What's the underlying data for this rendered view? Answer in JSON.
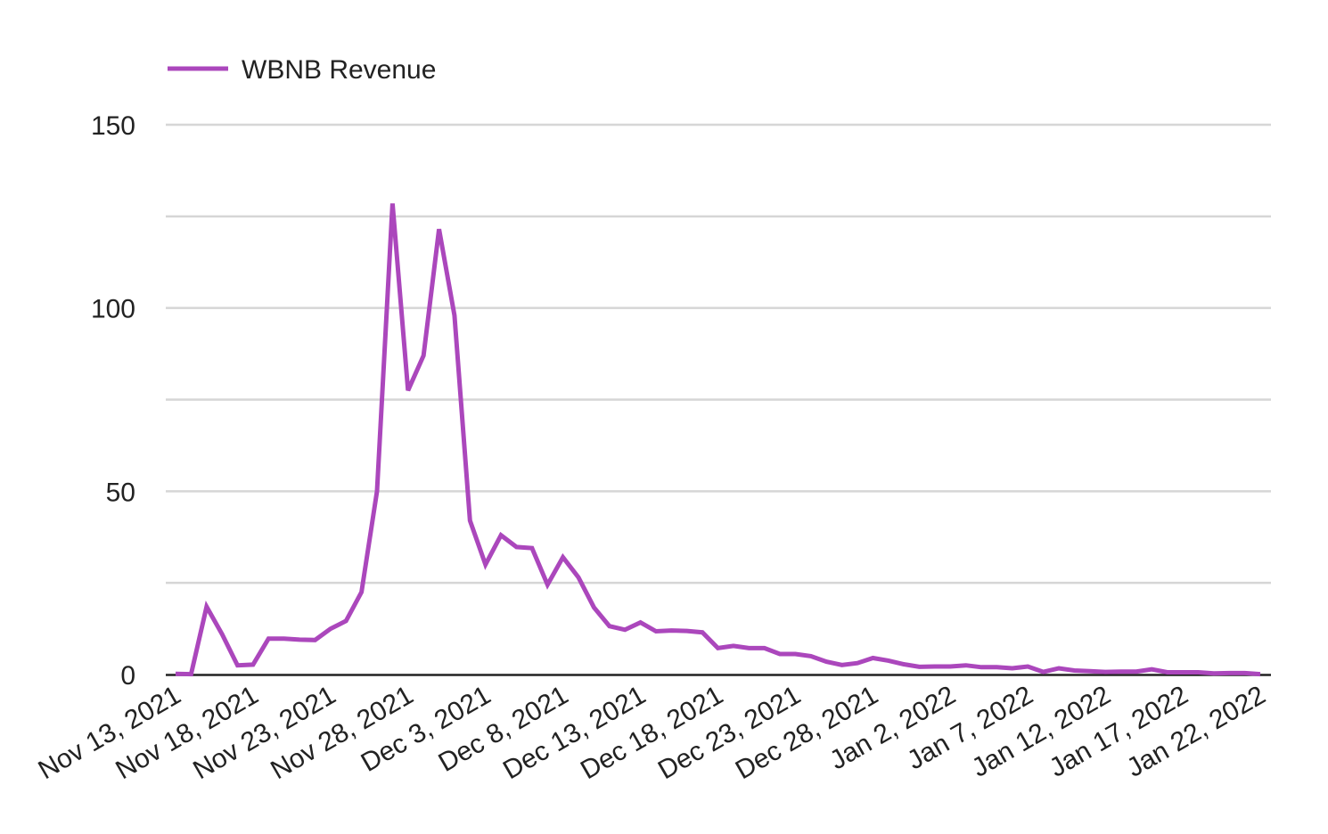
{
  "chart_data": {
    "type": "line",
    "title": "",
    "xlabel": "",
    "ylabel": "",
    "ylim": [
      0,
      150
    ],
    "yticks": [
      0,
      50,
      100,
      150
    ],
    "grid": true,
    "legend_position": "top-left",
    "x_start_date": "2021-11-13",
    "x_end_date": "2022-01-22",
    "x_ticks": [
      "Nov 13, 2021",
      "Nov 18, 2021",
      "Nov 23, 2021",
      "Nov 28, 2021",
      "Dec 3, 2021",
      "Dec 8, 2021",
      "Dec 13, 2021",
      "Dec 18, 2021",
      "Dec 23, 2021",
      "Dec 28, 2021",
      "Jan 2, 2022",
      "Jan 7, 2022",
      "Jan 12, 2022",
      "Jan 17, 2022",
      "Jan 22, 2022"
    ],
    "series": [
      {
        "name": "WBNB Revenue",
        "color": "#ab47bc",
        "x": [
          "2021-11-13",
          "2021-11-14",
          "2021-11-15",
          "2021-11-16",
          "2021-11-17",
          "2021-11-18",
          "2021-11-19",
          "2021-11-20",
          "2021-11-21",
          "2021-11-22",
          "2021-11-23",
          "2021-11-24",
          "2021-11-25",
          "2021-11-26",
          "2021-11-27",
          "2021-11-28",
          "2021-11-29",
          "2021-11-30",
          "2021-12-01",
          "2021-12-02",
          "2021-12-03",
          "2021-12-04",
          "2021-12-05",
          "2021-12-06",
          "2021-12-07",
          "2021-12-08",
          "2021-12-09",
          "2021-12-10",
          "2021-12-11",
          "2021-12-12",
          "2021-12-13",
          "2021-12-14",
          "2021-12-15",
          "2021-12-16",
          "2021-12-17",
          "2021-12-18",
          "2021-12-19",
          "2021-12-20",
          "2021-12-21",
          "2021-12-22",
          "2021-12-23",
          "2021-12-24",
          "2021-12-25",
          "2021-12-26",
          "2021-12-27",
          "2021-12-28",
          "2021-12-29",
          "2021-12-30",
          "2021-12-31",
          "2022-01-01",
          "2022-01-02",
          "2022-01-03",
          "2022-01-04",
          "2022-01-05",
          "2022-01-06",
          "2022-01-07",
          "2022-01-08",
          "2022-01-09",
          "2022-01-10",
          "2022-01-11",
          "2022-01-12",
          "2022-01-13",
          "2022-01-14",
          "2022-01-15",
          "2022-01-16",
          "2022-01-17",
          "2022-01-18",
          "2022-01-19",
          "2022-01-20",
          "2022-01-21",
          "2022-01-22"
        ],
        "values": [
          0.2,
          0.1,
          18.5,
          11,
          2.5,
          2.7,
          9.8,
          9.8,
          9.5,
          9.4,
          12.5,
          14.6,
          22.5,
          50,
          128.5,
          77.5,
          87,
          121.5,
          98,
          42,
          30,
          38,
          34.8,
          34.5,
          24.5,
          32,
          26.5,
          18.3,
          13.2,
          12.2,
          14.2,
          11.8,
          12,
          11.9,
          11.5,
          7.2,
          7.8,
          7.2,
          7.2,
          5.6,
          5.6,
          5,
          3.5,
          2.6,
          3.1,
          4.5,
          3.8,
          2.8,
          2.1,
          2.2,
          2.2,
          2.5,
          2,
          2,
          1.7,
          2.2,
          0.7,
          1.7,
          1.1,
          0.9,
          0.7,
          0.8,
          0.8,
          1.4,
          0.6,
          0.6,
          0.6,
          0.3,
          0.4,
          0.4,
          0.1
        ]
      }
    ]
  }
}
